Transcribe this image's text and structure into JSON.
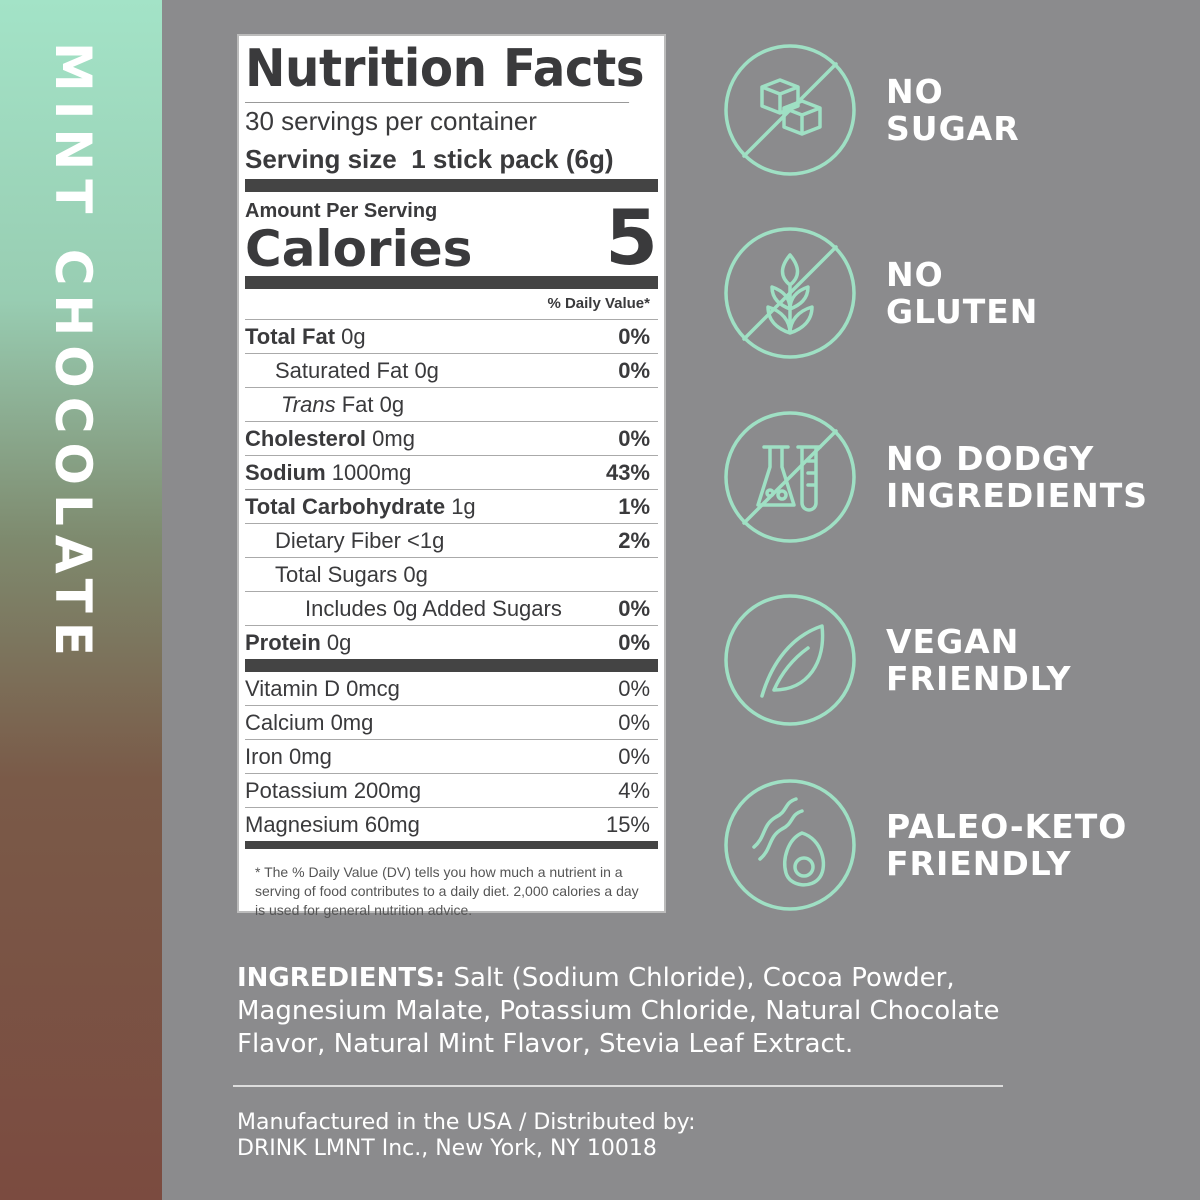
{
  "flavor": "MINT CHOCOLATE",
  "label": {
    "title": "Nutrition Facts",
    "servings": "30 servings per container",
    "serving_size_label": "Serving size",
    "serving_size_value": "1 stick pack (6g)",
    "amount_per_serving": "Amount Per Serving",
    "calories_label": "Calories",
    "calories_value": "5",
    "dv_header": "% Daily Value*",
    "rows": [
      {
        "name": "Total Fat",
        "amount": "0g",
        "dv": "0%",
        "bold": true,
        "indent": 0
      },
      {
        "name": "Saturated Fat",
        "amount": "0g",
        "dv": "0%",
        "bold": false,
        "indent": 1
      },
      {
        "name": "Trans",
        "name2": "Fat",
        "amount": "0g",
        "dv": "",
        "bold": false,
        "indent": 1
      },
      {
        "name": "Cholesterol",
        "amount": "0mg",
        "dv": "0%",
        "bold": true,
        "indent": 0
      },
      {
        "name": "Sodium",
        "amount": "1000mg",
        "dv": "43%",
        "bold": true,
        "indent": 0
      },
      {
        "name": "Total Carbohydrate",
        "amount": "1g",
        "dv": "1%",
        "bold": true,
        "indent": 0
      },
      {
        "name": "Dietary Fiber",
        "amount": "<1g",
        "dv": "2%",
        "bold": false,
        "indent": 1
      },
      {
        "name": "Total Sugars",
        "amount": "0g",
        "dv": "",
        "bold": false,
        "indent": 1
      },
      {
        "name": "Includes 0g Added Sugars",
        "amount": "",
        "dv": "0%",
        "bold": false,
        "indent": 2
      },
      {
        "name": "Protein",
        "amount": "0g",
        "dv": "0%",
        "bold": true,
        "indent": 0
      }
    ],
    "vitamins": [
      {
        "name": "Vitamin D 0mcg",
        "dv": "0%"
      },
      {
        "name": "Calcium 0mg",
        "dv": "0%"
      },
      {
        "name": "Iron 0mg",
        "dv": "0%"
      },
      {
        "name": "Potassium 200mg",
        "dv": "4%"
      },
      {
        "name": "Magnesium 60mg",
        "dv": "15%"
      }
    ],
    "footnote": "The % Daily Value (DV) tells you how much a nutrient in a serving of food contributes to a daily diet. 2,000 calories a day is used for general nutrition advice."
  },
  "features": [
    {
      "icon": "no-sugar-icon",
      "line1": "NO",
      "line2": "SUGAR"
    },
    {
      "icon": "no-gluten-icon",
      "line1": "NO",
      "line2": "GLUTEN"
    },
    {
      "icon": "no-chemicals-icon",
      "line1": "NO DODGY",
      "line2": "INGREDIENTS"
    },
    {
      "icon": "leaf-icon",
      "line1": "VEGAN",
      "line2": "FRIENDLY"
    },
    {
      "icon": "bacon-avocado-icon",
      "line1": "PALEO-KETO",
      "line2": "FRIENDLY"
    }
  ],
  "ingredients": {
    "label": "INGREDIENTS:",
    "text": " Salt (Sodium Chloride), Cocoa Powder, Magnesium Malate, Potassium Chloride, Natural Chocolate Flavor, Natural Mint Flavor, Stevia Leaf Extract."
  },
  "manufacturer": {
    "line1": "Manufactured in the USA / Distributed by:",
    "line2": "DRINK LMNT Inc., New York, NY 10018"
  },
  "colors": {
    "accent": "#9fe0c4",
    "background": "#8b8b8d"
  }
}
